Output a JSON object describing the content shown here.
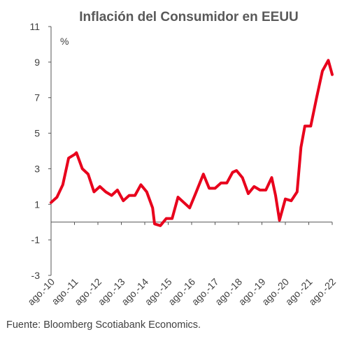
{
  "chart_data": {
    "type": "line",
    "title": "Inflación del Consumidor en EEUU",
    "unit_label": "%",
    "xlabel": "",
    "ylabel": "",
    "ylim": [
      -3,
      11
    ],
    "yticks": [
      -3,
      -1,
      1,
      3,
      5,
      7,
      9,
      11
    ],
    "xticks": [
      "ago.-10",
      "ago.-11",
      "ago.-12",
      "ago.-13",
      "ago.-14",
      "ago.-15",
      "ago.-16",
      "ago.-17",
      "ago.-18",
      "ago.-19",
      "ago.-20",
      "ago.-21",
      "ago.-22"
    ],
    "grid": false,
    "series_color": "#e8001c",
    "series": [
      {
        "x": [
          "2010-08",
          "2010-11",
          "2011-02",
          "2011-05",
          "2011-08",
          "2011-09",
          "2011-12",
          "2012-03",
          "2012-06",
          "2012-09",
          "2012-12",
          "2013-03",
          "2013-06",
          "2013-09",
          "2013-12",
          "2014-03",
          "2014-06",
          "2014-09",
          "2014-12",
          "2015-01",
          "2015-04",
          "2015-07",
          "2015-10",
          "2016-01",
          "2016-04",
          "2016-07",
          "2016-10",
          "2017-02",
          "2017-05",
          "2017-08",
          "2017-11",
          "2018-02",
          "2018-05",
          "2018-07",
          "2018-10",
          "2019-01",
          "2019-04",
          "2019-07",
          "2019-10",
          "2020-01",
          "2020-03",
          "2020-05",
          "2020-08",
          "2020-11",
          "2021-02",
          "2021-04",
          "2021-06",
          "2021-09",
          "2021-12",
          "2022-03",
          "2022-06",
          "2022-08"
        ],
        "values": [
          1.1,
          1.4,
          2.1,
          3.6,
          3.8,
          3.9,
          3.0,
          2.7,
          1.7,
          2.0,
          1.7,
          1.5,
          1.8,
          1.2,
          1.5,
          1.5,
          2.1,
          1.7,
          0.8,
          -0.1,
          -0.2,
          0.2,
          0.2,
          1.4,
          1.1,
          0.8,
          1.6,
          2.7,
          1.9,
          1.9,
          2.2,
          2.2,
          2.8,
          2.9,
          2.5,
          1.6,
          2.0,
          1.8,
          1.8,
          2.5,
          1.5,
          0.1,
          1.3,
          1.2,
          1.7,
          4.2,
          5.4,
          5.4,
          7.0,
          8.5,
          9.1,
          8.3
        ]
      }
    ]
  },
  "footer": {
    "source": "Fuente: Bloomberg Scotiabank Economics."
  }
}
